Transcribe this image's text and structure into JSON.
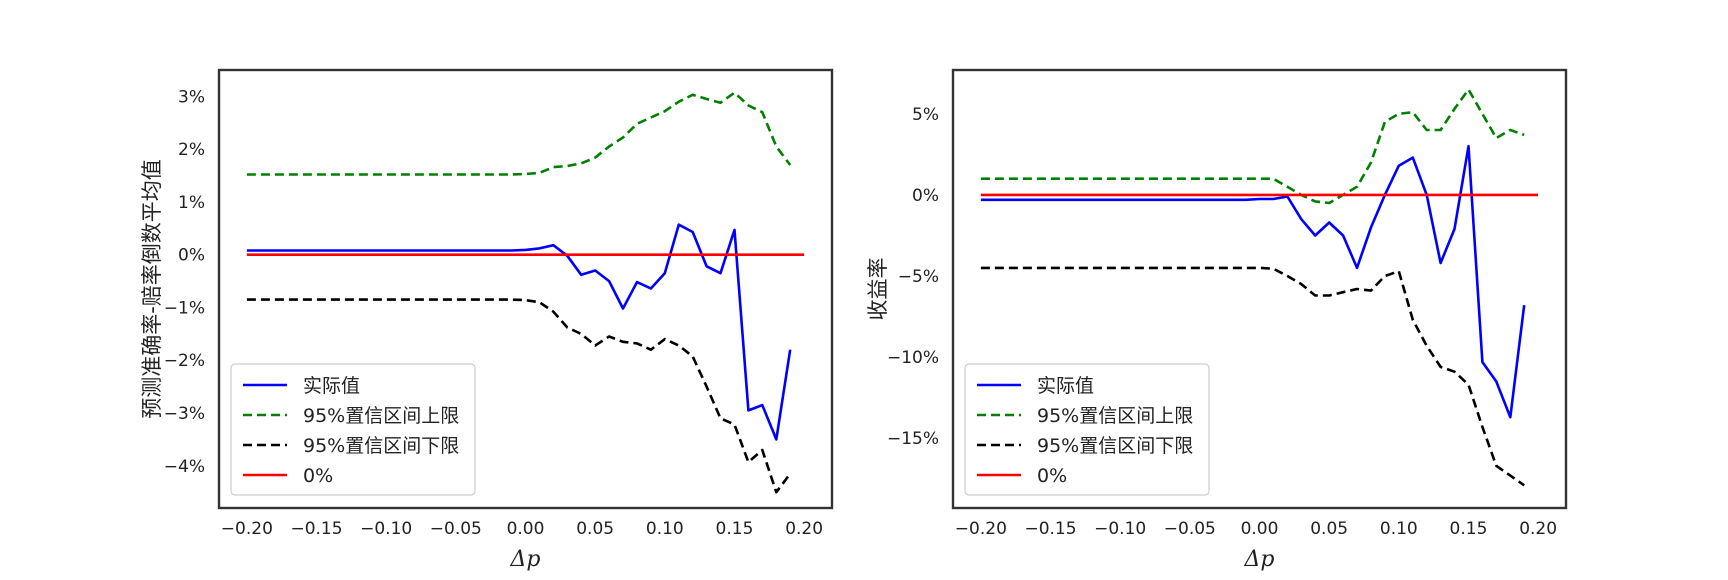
{
  "chart_data": [
    {
      "type": "line",
      "title": "",
      "xlabel": "Δp",
      "ylabel": "预测准确率-赔率倒数平均值",
      "xlim": [
        -0.22,
        0.22
      ],
      "ylim": [
        -4.8,
        3.5
      ],
      "y_unit": "%",
      "grid": false,
      "legend_position": "lower-left",
      "xticks": [
        -0.2,
        -0.15,
        -0.1,
        -0.05,
        0.0,
        0.05,
        0.1,
        0.15,
        0.2
      ],
      "xtick_labels": [
        "−0.20",
        "−0.15",
        "−0.10",
        "−0.05",
        "0.00",
        "0.05",
        "0.10",
        "0.15",
        "0.20"
      ],
      "yticks": [
        3,
        2,
        1,
        0,
        -1,
        -2,
        -3,
        -4
      ],
      "ytick_labels": [
        "3%",
        "2%",
        "1%",
        "0%",
        "−1%",
        "−2%",
        "−3%",
        "−4%"
      ],
      "series": [
        {
          "name": "实际值",
          "color": "#0000ff",
          "dash": "solid",
          "x": [
            -0.2,
            -0.01,
            0.0,
            0.01,
            0.02,
            0.03,
            0.04,
            0.05,
            0.06,
            0.07,
            0.08,
            0.09,
            0.1,
            0.11,
            0.12,
            0.13,
            0.14,
            0.15,
            0.16,
            0.17,
            0.18,
            0.19
          ],
          "y": [
            0.08,
            0.08,
            0.09,
            0.12,
            0.18,
            -0.02,
            -0.38,
            -0.3,
            -0.5,
            -1.02,
            -0.52,
            -0.64,
            -0.35,
            0.57,
            0.43,
            -0.22,
            -0.35,
            0.47,
            -2.95,
            -2.85,
            -3.5,
            -1.8
          ]
        },
        {
          "name": "95%置信区间上限",
          "color": "#008000",
          "dash": "dashed",
          "x": [
            -0.2,
            -0.01,
            0.0,
            0.01,
            0.02,
            0.03,
            0.04,
            0.05,
            0.06,
            0.07,
            0.08,
            0.09,
            0.1,
            0.11,
            0.12,
            0.13,
            0.14,
            0.15,
            0.16,
            0.17,
            0.18,
            0.19
          ],
          "y": [
            1.52,
            1.52,
            1.53,
            1.55,
            1.66,
            1.68,
            1.73,
            1.84,
            2.05,
            2.22,
            2.48,
            2.6,
            2.72,
            2.9,
            3.03,
            2.95,
            2.88,
            3.07,
            2.83,
            2.7,
            2.05,
            1.7
          ]
        },
        {
          "name": "95%置信区间下限",
          "color": "#000000",
          "dash": "dashed",
          "x": [
            -0.2,
            -0.01,
            0.0,
            0.01,
            0.02,
            0.03,
            0.04,
            0.05,
            0.06,
            0.07,
            0.08,
            0.09,
            0.1,
            0.11,
            0.12,
            0.13,
            0.14,
            0.15,
            0.16,
            0.17,
            0.18,
            0.19
          ],
          "y": [
            -0.85,
            -0.85,
            -0.86,
            -0.9,
            -1.08,
            -1.38,
            -1.5,
            -1.72,
            -1.55,
            -1.65,
            -1.68,
            -1.8,
            -1.6,
            -1.72,
            -1.93,
            -2.5,
            -3.1,
            -3.22,
            -3.93,
            -3.7,
            -4.5,
            -4.15
          ]
        },
        {
          "name": "0%",
          "color": "#ff0000",
          "dash": "solid",
          "x": [
            -0.2,
            0.2
          ],
          "y": [
            0,
            0
          ]
        }
      ]
    },
    {
      "type": "line",
      "title": "",
      "xlabel": "Δp",
      "ylabel": "收益率",
      "xlim": [
        -0.22,
        0.22
      ],
      "ylim": [
        -19.3,
        7.7
      ],
      "y_unit": "%",
      "grid": false,
      "legend_position": "lower-left",
      "xticks": [
        -0.2,
        -0.15,
        -0.1,
        -0.05,
        0.0,
        0.05,
        0.1,
        0.15,
        0.2
      ],
      "xtick_labels": [
        "−0.20",
        "−0.15",
        "−0.10",
        "−0.05",
        "0.00",
        "0.05",
        "0.10",
        "0.15",
        "0.20"
      ],
      "yticks": [
        5,
        0,
        -5,
        -10,
        -15
      ],
      "ytick_labels": [
        "5%",
        "0%",
        "−5%",
        "−10%",
        "−15%"
      ],
      "series": [
        {
          "name": "实际值",
          "color": "#0000ff",
          "dash": "solid",
          "x": [
            -0.2,
            -0.01,
            0.0,
            0.01,
            0.02,
            0.03,
            0.04,
            0.05,
            0.06,
            0.07,
            0.08,
            0.09,
            0.1,
            0.11,
            0.12,
            0.13,
            0.14,
            0.15,
            0.16,
            0.17,
            0.18,
            0.19
          ],
          "y": [
            -0.3,
            -0.3,
            -0.25,
            -0.25,
            -0.1,
            -1.5,
            -2.5,
            -1.7,
            -2.5,
            -4.5,
            -2.0,
            0.0,
            1.8,
            2.3,
            0.0,
            -4.2,
            -2.1,
            3.0,
            -10.3,
            -11.5,
            -13.7,
            -6.8
          ]
        },
        {
          "name": "95%置信区间上限",
          "color": "#008000",
          "dash": "dashed",
          "x": [
            -0.2,
            -0.01,
            0.0,
            0.01,
            0.02,
            0.03,
            0.04,
            0.05,
            0.06,
            0.07,
            0.08,
            0.09,
            0.1,
            0.11,
            0.12,
            0.13,
            0.14,
            0.15,
            0.16,
            0.17,
            0.18,
            0.19
          ],
          "y": [
            1.0,
            1.0,
            1.0,
            1.0,
            0.5,
            0.0,
            -0.4,
            -0.5,
            0.0,
            0.5,
            2.0,
            4.5,
            5.0,
            5.1,
            4.0,
            4.0,
            5.3,
            6.5,
            5.0,
            3.5,
            4.0,
            3.7
          ]
        },
        {
          "name": "95%置信区间下限",
          "color": "#000000",
          "dash": "dashed",
          "x": [
            -0.2,
            -0.01,
            0.0,
            0.01,
            0.02,
            0.03,
            0.04,
            0.05,
            0.06,
            0.07,
            0.08,
            0.09,
            0.1,
            0.11,
            0.12,
            0.13,
            0.14,
            0.15,
            0.16,
            0.17,
            0.18,
            0.19
          ],
          "y": [
            -4.5,
            -4.5,
            -4.5,
            -4.55,
            -5.0,
            -5.5,
            -6.2,
            -6.2,
            -6.0,
            -5.8,
            -5.9,
            -5.0,
            -4.7,
            -7.7,
            -9.3,
            -10.6,
            -10.9,
            -11.7,
            -14.3,
            -16.7,
            -17.3,
            -17.9
          ]
        },
        {
          "name": "0%",
          "color": "#ff0000",
          "dash": "solid",
          "x": [
            -0.2,
            0.2
          ],
          "y": [
            0,
            0
          ]
        }
      ]
    }
  ]
}
